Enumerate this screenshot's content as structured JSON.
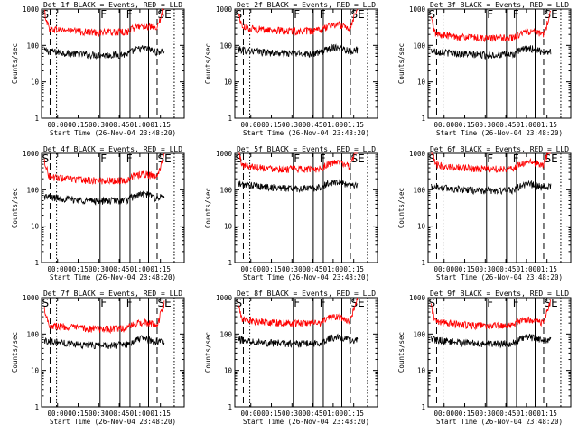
{
  "figure": {
    "type": "IDL multi-panel detector rate plot",
    "colors": {
      "events": "#000000",
      "lld": "#ff0000"
    }
  },
  "chart_data": [
    {
      "type": "line",
      "title": "Det 1f BLACK = Events, RED = LLD",
      "xlabel": "Start Time (26-Nov-04 23:48:20)",
      "ylabel": "Counts/sec",
      "x_ticks": [
        "00:00",
        "00:15",
        "00:30",
        "00:45",
        "01:00",
        "01:15"
      ],
      "x_tick_minutes": [
        11.67,
        26.67,
        41.67,
        56.67,
        71.67,
        86.67
      ],
      "xlim_minutes": [
        0,
        104
      ],
      "y_ticks": [
        "1",
        "10",
        "100",
        "1000"
      ],
      "yscale": "log",
      "ylim": [
        1,
        1000
      ],
      "markers": [
        "S",
        "F",
        "F",
        "SE"
      ],
      "series": [
        {
          "color": "#000000",
          "level": 55
        },
        {
          "color": "#ff0000",
          "level": 230
        }
      ]
    },
    {
      "type": "line",
      "title": "Det 2f BLACK = Events, RED = LLD",
      "xlabel": "Start Time (26-Nov-04 23:48:20)",
      "ylabel": "Counts/sec",
      "x_ticks": [
        "00:00",
        "00:15",
        "00:30",
        "00:45",
        "01:00",
        "01:15"
      ],
      "x_tick_minutes": [
        11.67,
        26.67,
        41.67,
        56.67,
        71.67,
        86.67
      ],
      "xlim_minutes": [
        0,
        104
      ],
      "y_ticks": [
        "1",
        "10",
        "100",
        "1000"
      ],
      "yscale": "log",
      "ylim": [
        1,
        1000
      ],
      "markers": [
        "S",
        "F",
        "F",
        "SE"
      ],
      "series": [
        {
          "color": "#000000",
          "level": 60
        },
        {
          "color": "#ff0000",
          "level": 250
        }
      ]
    },
    {
      "type": "line",
      "title": "Det 3f BLACK = Events, RED = LLD",
      "xlabel": "Start Time (26-Nov-04 23:48:20)",
      "ylabel": "Counts/sec",
      "x_ticks": [
        "00:00",
        "00:15",
        "00:30",
        "00:45",
        "01:00",
        "01:15"
      ],
      "x_tick_minutes": [
        11.67,
        26.67,
        41.67,
        56.67,
        71.67,
        86.67
      ],
      "xlim_minutes": [
        0,
        104
      ],
      "y_ticks": [
        "1",
        "10",
        "100",
        "1000"
      ],
      "yscale": "log",
      "ylim": [
        1,
        1000
      ],
      "markers": [
        "S",
        "F",
        "F",
        "SE"
      ],
      "series": [
        {
          "color": "#000000",
          "level": 55
        },
        {
          "color": "#ff0000",
          "level": 160
        }
      ]
    },
    {
      "type": "line",
      "title": "Det 4f BLACK = Events, RED = LLD",
      "xlabel": "Start Time (26-Nov-04 23:48:20)",
      "ylabel": "Counts/sec",
      "x_ticks": [
        "00:00",
        "00:15",
        "00:30",
        "00:45",
        "01:00",
        "01:15"
      ],
      "x_tick_minutes": [
        11.67,
        26.67,
        41.67,
        56.67,
        71.67,
        86.67
      ],
      "xlim_minutes": [
        0,
        104
      ],
      "y_ticks": [
        "1",
        "10",
        "100",
        "1000"
      ],
      "yscale": "log",
      "ylim": [
        1,
        1000
      ],
      "markers": [
        "S",
        "F",
        "F",
        "SE"
      ],
      "series": [
        {
          "color": "#000000",
          "level": 50
        },
        {
          "color": "#ff0000",
          "level": 180
        }
      ]
    },
    {
      "type": "line",
      "title": "Det 5f BLACK = Events, RED = LLD",
      "xlabel": "Start Time (26-Nov-04 23:48:20)",
      "ylabel": "Counts/sec",
      "x_ticks": [
        "00:00",
        "00:15",
        "00:30",
        "00:45",
        "01:00",
        "01:15"
      ],
      "x_tick_minutes": [
        11.67,
        26.67,
        41.67,
        56.67,
        71.67,
        86.67
      ],
      "xlim_minutes": [
        0,
        104
      ],
      "y_ticks": [
        "1",
        "10",
        "100",
        "1000"
      ],
      "yscale": "log",
      "ylim": [
        1,
        1000
      ],
      "markers": [
        "S",
        "F",
        "F",
        "SE"
      ],
      "series": [
        {
          "color": "#000000",
          "level": 110
        },
        {
          "color": "#ff0000",
          "level": 370
        }
      ]
    },
    {
      "type": "line",
      "title": "Det 6f BLACK = Events, RED = LLD",
      "xlabel": "Start Time (26-Nov-04 23:48:20)",
      "ylabel": "Counts/sec",
      "x_ticks": [
        "00:00",
        "00:15",
        "00:30",
        "00:45",
        "01:00",
        "01:15"
      ],
      "x_tick_minutes": [
        11.67,
        26.67,
        41.67,
        56.67,
        71.67,
        86.67
      ],
      "xlim_minutes": [
        0,
        104
      ],
      "y_ticks": [
        "1",
        "10",
        "100",
        "1000"
      ],
      "yscale": "log",
      "ylim": [
        1,
        1000
      ],
      "markers": [
        "S",
        "F",
        "F",
        "SE"
      ],
      "series": [
        {
          "color": "#000000",
          "level": 95
        },
        {
          "color": "#ff0000",
          "level": 380
        }
      ]
    },
    {
      "type": "line",
      "title": "Det 7f BLACK = Events, RED = LLD",
      "xlabel": "Start Time (26-Nov-04 23:48:20)",
      "ylabel": "Counts/sec",
      "x_ticks": [
        "00:00",
        "00:15",
        "00:30",
        "00:45",
        "01:00",
        "01:15"
      ],
      "x_tick_minutes": [
        11.67,
        26.67,
        41.67,
        56.67,
        71.67,
        86.67
      ],
      "xlim_minutes": [
        0,
        104
      ],
      "y_ticks": [
        "1",
        "10",
        "100",
        "1000"
      ],
      "yscale": "log",
      "ylim": [
        1,
        1000
      ],
      "markers": [
        "S",
        "F",
        "F",
        "SE"
      ],
      "series": [
        {
          "color": "#000000",
          "level": 50
        },
        {
          "color": "#ff0000",
          "level": 140
        }
      ]
    },
    {
      "type": "line",
      "title": "Det 8f BLACK = Events, RED = LLD",
      "xlabel": "Start Time (26-Nov-04 23:48:20)",
      "ylabel": "Counts/sec",
      "x_ticks": [
        "00:00",
        "00:15",
        "00:30",
        "00:45",
        "01:00",
        "01:15"
      ],
      "x_tick_minutes": [
        11.67,
        26.67,
        41.67,
        56.67,
        71.67,
        86.67
      ],
      "xlim_minutes": [
        0,
        104
      ],
      "y_ticks": [
        "1",
        "10",
        "100",
        "1000"
      ],
      "yscale": "log",
      "ylim": [
        1,
        1000
      ],
      "markers": [
        "S",
        "F",
        "F",
        "SE"
      ],
      "series": [
        {
          "color": "#000000",
          "level": 55
        },
        {
          "color": "#ff0000",
          "level": 200
        }
      ]
    },
    {
      "type": "line",
      "title": "Det 9f BLACK = Events, RED = LLD",
      "xlabel": "Start Time (26-Nov-04 23:48:20)",
      "ylabel": "Counts/sec",
      "x_ticks": [
        "00:00",
        "00:15",
        "00:30",
        "00:45",
        "01:00",
        "01:15"
      ],
      "x_tick_minutes": [
        11.67,
        26.67,
        41.67,
        56.67,
        71.67,
        86.67
      ],
      "xlim_minutes": [
        0,
        104
      ],
      "y_ticks": [
        "1",
        "10",
        "100",
        "1000"
      ],
      "yscale": "log",
      "ylim": [
        1,
        1000
      ],
      "markers": [
        "S",
        "F",
        "F",
        "SE"
      ],
      "series": [
        {
          "color": "#000000",
          "level": 55
        },
        {
          "color": "#ff0000",
          "level": 170
        }
      ]
    }
  ]
}
